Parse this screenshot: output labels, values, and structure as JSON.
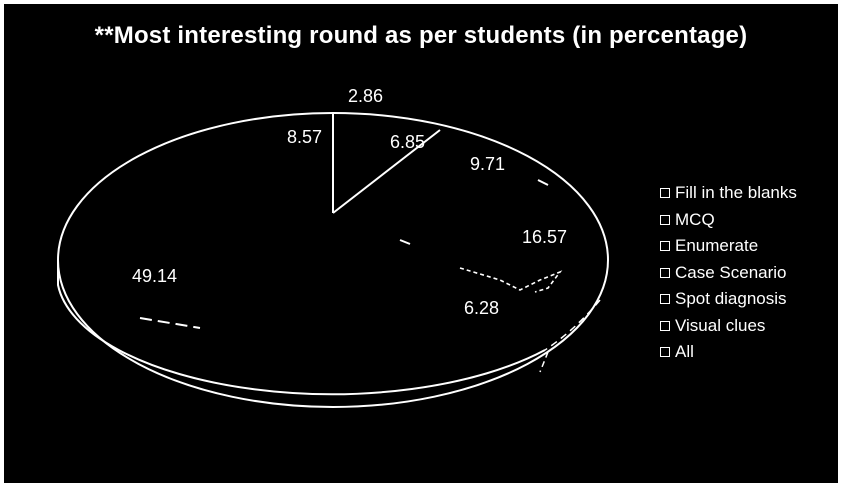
{
  "chart_data": {
    "type": "pie",
    "title": "**Most interesting round as per students (in percentage)",
    "categories": [
      "Fill in the blanks",
      "MCQ",
      "Enumerate",
      "Case Scenario",
      "Spot diagnosis",
      "Visual clues",
      "All"
    ],
    "values": [
      2.86,
      8.57,
      6.85,
      9.71,
      16.57,
      6.28,
      49.14
    ],
    "slice_labels": [
      "2.86",
      "8.57",
      "6.85",
      "9.71",
      "16.57",
      "6.28",
      "49.14"
    ],
    "legend_position": "right",
    "style": "3d-outline"
  },
  "colors": {
    "background": "#000000",
    "outline": "#ffffff",
    "text": "#ffffff"
  }
}
